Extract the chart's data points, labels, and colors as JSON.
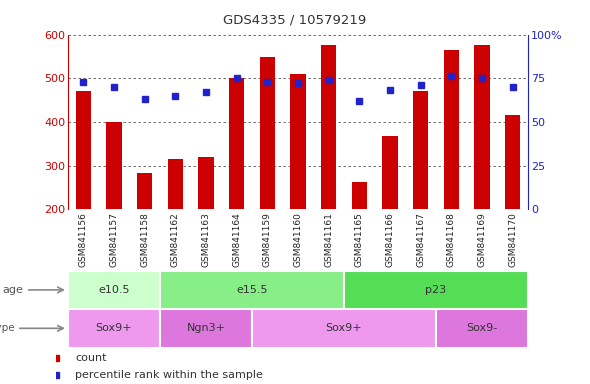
{
  "title": "GDS4335 / 10579219",
  "samples": [
    "GSM841156",
    "GSM841157",
    "GSM841158",
    "GSM841162",
    "GSM841163",
    "GSM841164",
    "GSM841159",
    "GSM841160",
    "GSM841161",
    "GSM841165",
    "GSM841166",
    "GSM841167",
    "GSM841168",
    "GSM841169",
    "GSM841170"
  ],
  "counts": [
    470,
    400,
    282,
    315,
    320,
    500,
    548,
    510,
    575,
    263,
    368,
    470,
    565,
    575,
    415
  ],
  "percentile_ranks": [
    73,
    70,
    63,
    65,
    67,
    75,
    73,
    72,
    74,
    62,
    68,
    71,
    76,
    75,
    70
  ],
  "ylim_left": [
    200,
    600
  ],
  "ylim_right": [
    0,
    100
  ],
  "yticks_left": [
    200,
    300,
    400,
    500,
    600
  ],
  "yticks_right": [
    0,
    25,
    50,
    75,
    100
  ],
  "bar_color": "#cc0000",
  "dot_color": "#2222cc",
  "bar_bottom": 200,
  "age_groups": [
    {
      "label": "e10.5",
      "start": 0,
      "end": 3,
      "color": "#ccffcc"
    },
    {
      "label": "e15.5",
      "start": 3,
      "end": 9,
      "color": "#88ee88"
    },
    {
      "label": "p23",
      "start": 9,
      "end": 15,
      "color": "#55dd55"
    }
  ],
  "cell_type_groups": [
    {
      "label": "Sox9+",
      "start": 0,
      "end": 3,
      "color": "#ee99ee"
    },
    {
      "label": "Ngn3+",
      "start": 3,
      "end": 6,
      "color": "#dd77dd"
    },
    {
      "label": "Sox9+",
      "start": 6,
      "end": 12,
      "color": "#ee99ee"
    },
    {
      "label": "Sox9-",
      "start": 12,
      "end": 15,
      "color": "#dd77dd"
    }
  ],
  "bar_width": 0.5,
  "grid_color": "#555555",
  "bg_color": "#ffffff",
  "plot_bg_color": "#ffffff",
  "xlabel_bg_color": "#cccccc",
  "tick_label_color_left": "#cc0000",
  "tick_label_color_right": "#2222cc",
  "age_label_color": "#555555",
  "cell_label_color": "#555555"
}
